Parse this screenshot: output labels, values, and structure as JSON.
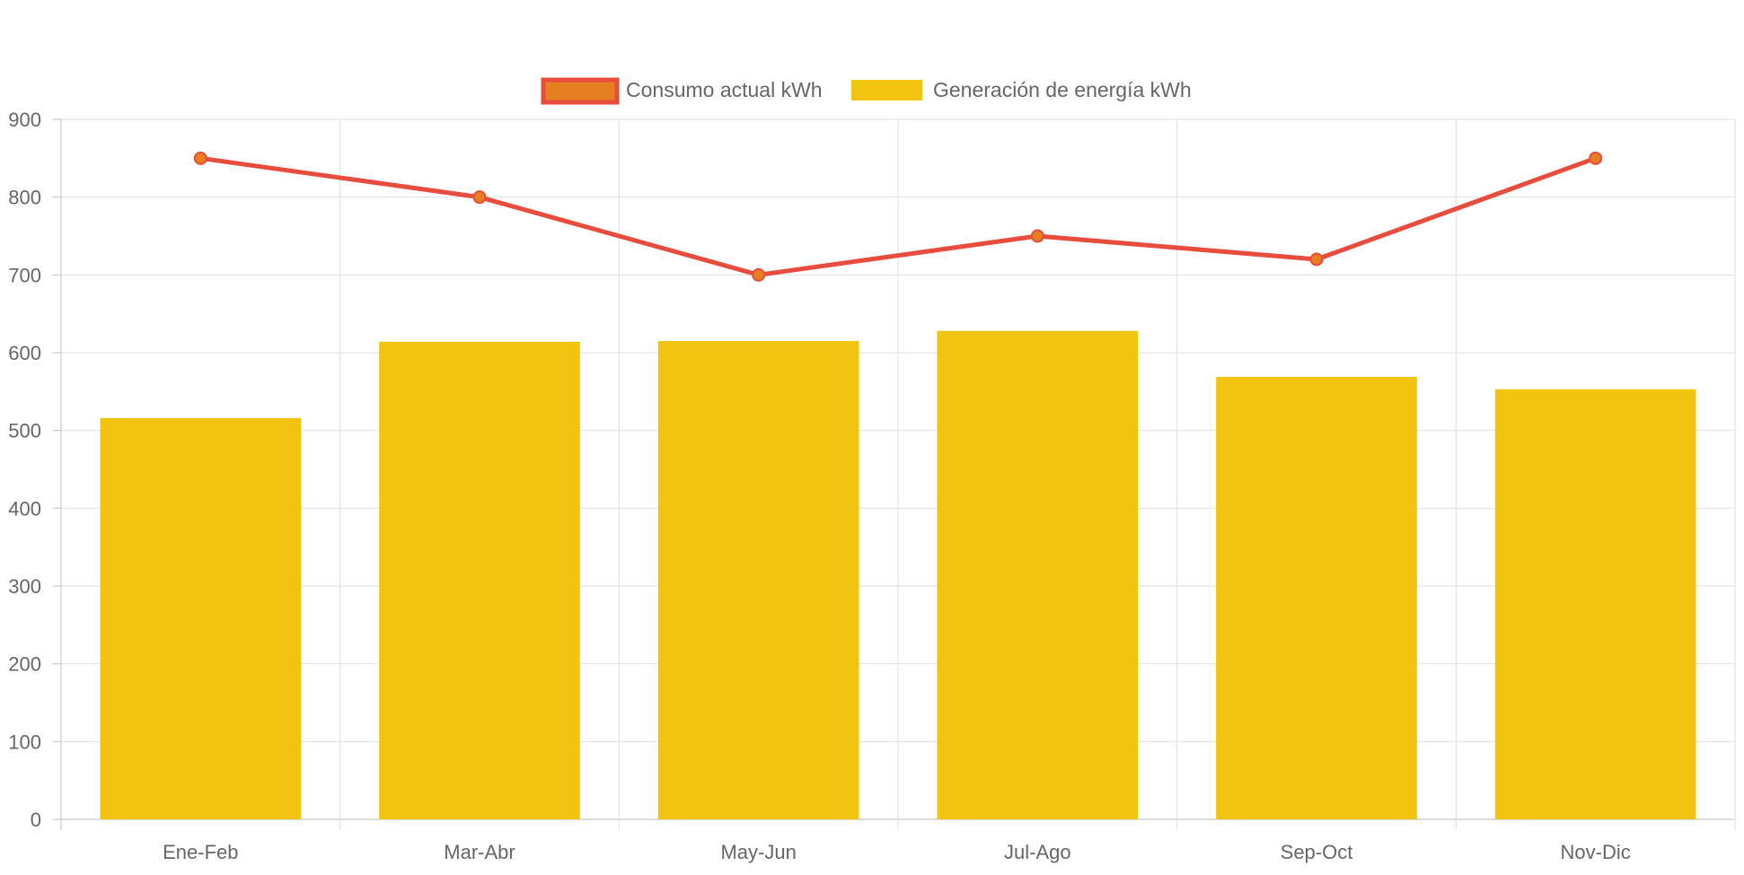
{
  "chart_data": {
    "type": "bar",
    "categories": [
      "Ene-Feb",
      "Mar-Abr",
      "May-Jun",
      "Jul-Ago",
      "Sep-Oct",
      "Nov-Dic"
    ],
    "series": [
      {
        "name": "Consumo actual kWh",
        "type": "line",
        "values": [
          850,
          800,
          700,
          750,
          720,
          850
        ],
        "color": "#E74C3C",
        "point_color": "#E67E22"
      },
      {
        "name": "Generación de energía kWh",
        "type": "bar",
        "values": [
          516,
          614,
          615,
          628,
          569,
          553
        ],
        "color": "#F1C40F"
      }
    ],
    "ylim": [
      0,
      900
    ],
    "yticks": [
      0,
      100,
      200,
      300,
      400,
      500,
      600,
      700,
      800,
      900
    ],
    "grid": true,
    "legend_position": "top",
    "title": "",
    "xlabel": "",
    "ylabel": ""
  },
  "colors": {
    "grid": "#e3e3e3",
    "axis": "#c8c8c8",
    "tick_text": "#666666",
    "legend_text": "#666666"
  }
}
